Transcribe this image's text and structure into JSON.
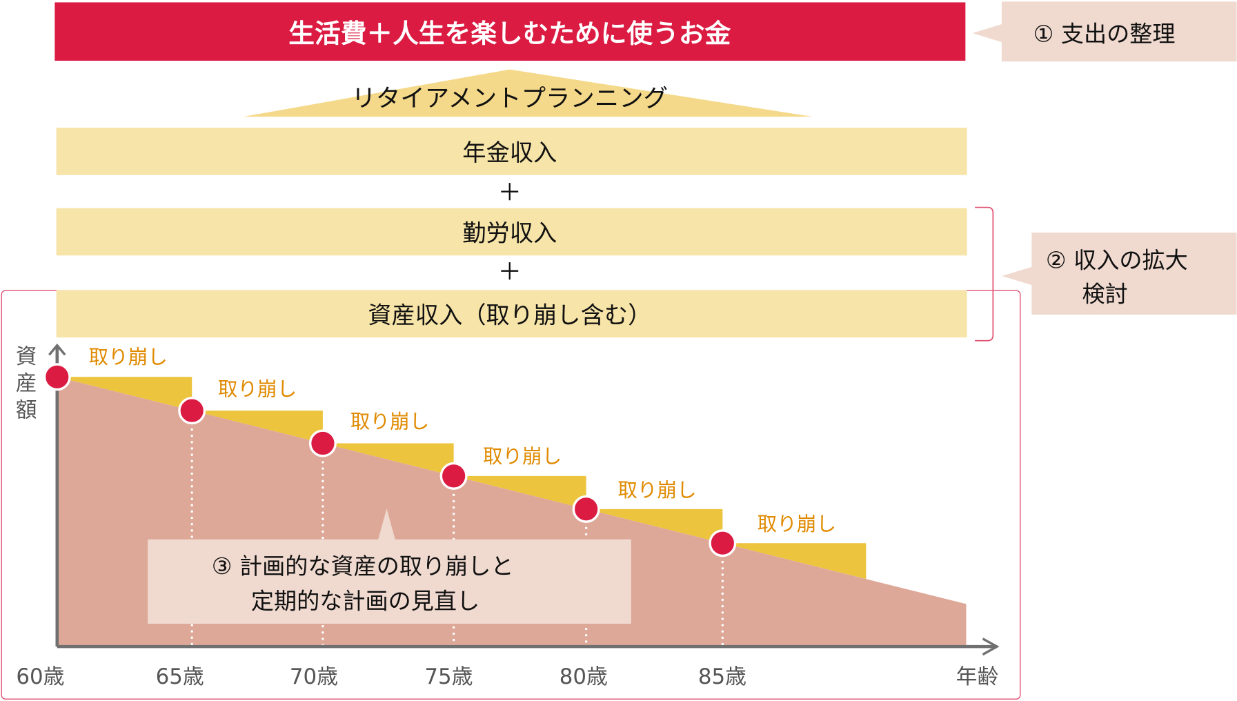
{
  "colors": {
    "header_red": "#db1b42",
    "income_bar": "#f7e4a8",
    "triangle": "#f5d98a",
    "callout_bg": "#f0dad0",
    "asset_area": "#dda898",
    "drawdown_yellow": "#ecc43e",
    "dot_red": "#db1b42",
    "label_orange": "#e08a00",
    "frame_pink": "#e05070",
    "axis_gray": "#707070"
  },
  "header": {
    "title": "生活費＋人生を楽しむために使うお金"
  },
  "callouts": {
    "one": "① 支出の整理",
    "two_line1": "② 収入の拡大",
    "two_line2": "検討",
    "three_line1": "③ 計画的な資産の取り崩しと",
    "three_line2": "定期的な計画の見直し"
  },
  "planning": {
    "title": "リタイアメントプランニング"
  },
  "income": {
    "pension": "年金収入",
    "plus1": "＋",
    "work": "勤労収入",
    "plus2": "＋",
    "assets": "資産収入（取り崩し含む）"
  },
  "chart": {
    "y_label": [
      "資",
      "産",
      "額"
    ],
    "x_label": "年齢",
    "ages": [
      "60歳",
      "65歳",
      "70歳",
      "75歳",
      "80歳",
      "85歳"
    ],
    "drawdown_label": "取り崩し",
    "drawdown_labels": [
      "取り崩し",
      "取り崩し",
      "取り崩し",
      "取り崩し",
      "取り崩し",
      "取り崩し"
    ]
  }
}
